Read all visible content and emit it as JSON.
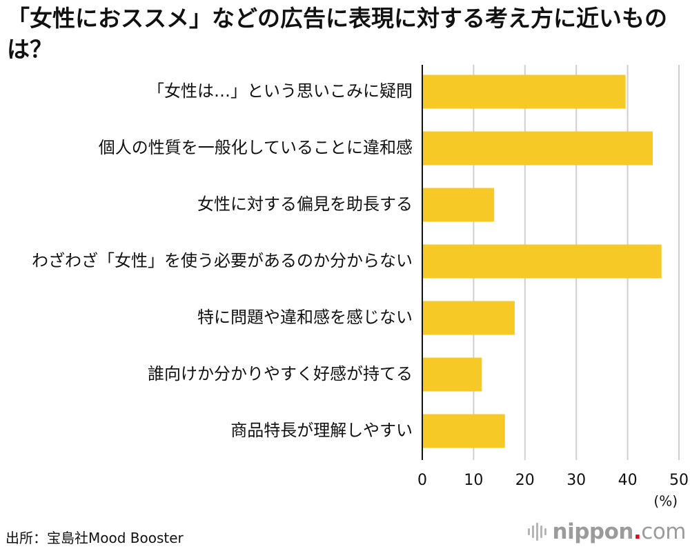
{
  "title": "「女性におススメ」などの広告に表現に対する考え方に近いものは？",
  "source": "出所：宝島社Mood Booster",
  "brand": {
    "name": "nippon",
    "dot": ".",
    "tld": "com",
    "accent": "#e6001a"
  },
  "chart_data": {
    "type": "bar",
    "orientation": "horizontal",
    "title": "「女性におススメ」などの広告に表現に対する考え方に近いものは？",
    "categories": [
      "「女性は…」という思いこみに疑問",
      "個人の性質を一般化していることに違和感",
      "女性に対する偏見を助長する",
      "わざわざ「女性」を使う必要があるのか分からない",
      "特に問題や違和感を感じない",
      "誰向けか分かりやすく好感が持てる",
      "商品特長が理解しやすい"
    ],
    "values": [
      39.6,
      44.9,
      14.0,
      46.6,
      18.0,
      11.6,
      16.1
    ],
    "xlim": [
      0,
      50
    ],
    "xticks": [
      "0",
      "10",
      "20",
      "30",
      "40",
      "50"
    ],
    "xunit": "(%)",
    "bar_color": "#f7c926",
    "grid": true
  }
}
